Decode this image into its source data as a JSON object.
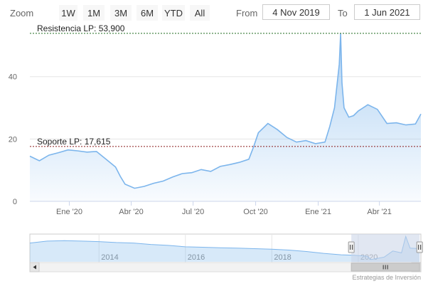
{
  "range_selector": {
    "zoom_label": "Zoom",
    "buttons": [
      "1W",
      "1M",
      "3M",
      "6M",
      "YTD",
      "All"
    ],
    "from_label": "From",
    "from_value": "4 Nov 2019",
    "to_label": "To",
    "to_value": "1 Jun 2021"
  },
  "colors": {
    "line": "#7cb5ec",
    "resistance_line": "#1e6b1e",
    "support_line": "#8b1a1a",
    "navigator_mask": "#c8d4e8"
  },
  "chart_data": {
    "type": "area",
    "title": "",
    "xlabel": "",
    "ylabel": "",
    "ylim": [
      0,
      55
    ],
    "y_ticks": [
      0,
      20,
      40
    ],
    "x_tick_labels": [
      "Ene '20",
      "Abr '20",
      "Jul '20",
      "Oct '20",
      "Ene '21",
      "Abr '21"
    ],
    "x_tick_dates": [
      "2020-01-01",
      "2020-04-01",
      "2020-07-01",
      "2020-10-01",
      "2021-01-01",
      "2021-04-01"
    ],
    "x_range": [
      "2019-11-04",
      "2021-06-01"
    ],
    "plot_lines": [
      {
        "label": "Resistencia LP: 53,900",
        "value": 53.9
      },
      {
        "label": "Soporte LP: 17,615",
        "value": 17.615
      }
    ],
    "series": [
      {
        "x": [
          "2019-11-04",
          "2019-11-18",
          "2019-12-02",
          "2019-12-16",
          "2019-12-30",
          "2020-01-13",
          "2020-01-27",
          "2020-02-10",
          "2020-02-24",
          "2020-03-09",
          "2020-03-16",
          "2020-03-23",
          "2020-04-06",
          "2020-04-20",
          "2020-05-04",
          "2020-05-18",
          "2020-06-01",
          "2020-06-15",
          "2020-06-29",
          "2020-07-13",
          "2020-07-27",
          "2020-08-10",
          "2020-08-24",
          "2020-09-07",
          "2020-09-21",
          "2020-09-28",
          "2020-10-05",
          "2020-10-19",
          "2020-11-02",
          "2020-11-16",
          "2020-11-30",
          "2020-12-14",
          "2020-12-28",
          "2021-01-11",
          "2021-01-18",
          "2021-01-25",
          "2021-02-01",
          "2021-02-03",
          "2021-02-05",
          "2021-02-08",
          "2021-02-15",
          "2021-02-22",
          "2021-03-01",
          "2021-03-15",
          "2021-03-29",
          "2021-04-12",
          "2021-04-26",
          "2021-05-10",
          "2021-05-24",
          "2021-06-01"
        ],
        "values": [
          14.5,
          13.0,
          14.8,
          15.6,
          16.5,
          16.2,
          15.8,
          16.0,
          13.5,
          11.0,
          8.0,
          5.5,
          4.2,
          4.8,
          5.8,
          6.5,
          7.8,
          8.9,
          9.2,
          10.2,
          9.6,
          11.2,
          11.8,
          12.5,
          13.5,
          17.5,
          22.0,
          25.0,
          23.0,
          20.5,
          19.0,
          19.5,
          18.5,
          19.0,
          24.0,
          30.0,
          44.0,
          53.9,
          38.0,
          30.0,
          27.0,
          27.5,
          29.0,
          31.0,
          29.5,
          25.0,
          25.2,
          24.5,
          24.8,
          28.0
        ]
      }
    ],
    "navigator": {
      "x_tick_labels": [
        "2014",
        "2016",
        "2018",
        "2020"
      ],
      "x_tick_years": [
        2014,
        2016,
        2018,
        2020
      ],
      "x_range_years": [
        2012.4,
        2021.45
      ],
      "selected_range_years": [
        2019.84,
        2021.42
      ],
      "x": [
        2012.4,
        2012.8,
        2013.2,
        2013.6,
        2014.0,
        2014.4,
        2014.8,
        2015.2,
        2015.6,
        2016.0,
        2016.4,
        2016.8,
        2017.2,
        2017.6,
        2018.0,
        2018.4,
        2018.8,
        2019.2,
        2019.6,
        2019.9,
        2020.2,
        2020.3,
        2020.6,
        2020.8,
        2021.0,
        2021.1,
        2021.2,
        2021.42
      ],
      "values": [
        40,
        44,
        45,
        44,
        43,
        41,
        40,
        37,
        35,
        32,
        31,
        30,
        29,
        28,
        27,
        25,
        22,
        18,
        15,
        14,
        12,
        5,
        10,
        23,
        19,
        54,
        29,
        28
      ]
    }
  },
  "credits": "Estrategias de Inversión"
}
